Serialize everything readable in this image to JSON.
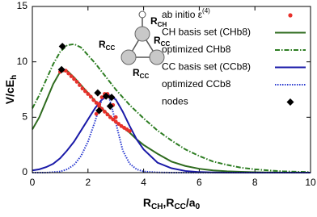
{
  "chart_data": {
    "type": "line",
    "xlabel": [
      {
        "text": "R",
        "sub": "CH"
      },
      {
        "text": ",R",
        "sub": "CC"
      },
      {
        "text": "/a",
        "sub": "0"
      }
    ],
    "ylabel": [
      {
        "text": "V/cE",
        "sub": "h"
      }
    ],
    "xlim": [
      0,
      10
    ],
    "xticks": [
      0,
      2,
      4,
      6,
      8,
      10
    ],
    "ylim": [
      0,
      15
    ],
    "yticks": [
      0,
      5,
      10,
      15
    ],
    "legend": "upper right",
    "inset_labels": [
      {
        "text": "R",
        "sub": "CH"
      },
      {
        "text": "R",
        "sub": "CC"
      },
      {
        "text": "R",
        "sub": "CC"
      },
      {
        "text": "R",
        "sub": "CC"
      }
    ],
    "series": [
      {
        "name": "ab initio ε",
        "name_sup": "(4)",
        "type": "scatter",
        "marker": "circle",
        "color": "#e8302a",
        "x": [
          1.0,
          1.1,
          1.2,
          1.3,
          1.4,
          1.5,
          1.6,
          1.7,
          1.8,
          1.9,
          2.0,
          2.1,
          2.2,
          2.3,
          2.4,
          2.5,
          2.6,
          2.7,
          2.8,
          2.9,
          3.0,
          3.1,
          3.2,
          3.3,
          3.4,
          3.5,
          2.3,
          2.4,
          2.5,
          2.6,
          2.7,
          2.8,
          2.9,
          3.0
        ],
        "values": [
          9.1,
          9.25,
          9.2,
          8.95,
          8.7,
          8.45,
          8.2,
          7.9,
          7.6,
          7.35,
          7.1,
          6.85,
          6.55,
          6.3,
          6.0,
          5.75,
          5.5,
          5.25,
          5.0,
          4.8,
          4.6,
          4.4,
          4.2,
          4.05,
          3.9,
          3.75,
          5.3,
          6.2,
          6.8,
          7.1,
          7.1,
          6.8,
          6.1,
          5.0
        ]
      },
      {
        "name": "CH basis set (CHb8)",
        "type": "line",
        "style": "solid",
        "color": "#2e6b1e",
        "x": [
          0,
          0.25,
          0.5,
          0.75,
          1,
          1.25,
          1.5,
          1.75,
          2,
          2.25,
          2.5,
          2.75,
          3,
          3.25,
          3.5,
          3.75,
          4,
          4.5,
          5,
          5.5,
          6,
          6.5,
          7,
          7.5,
          8,
          8.5,
          9,
          9.5,
          10
        ],
        "values": [
          3.9,
          5.0,
          6.5,
          8.0,
          9.1,
          9.2,
          8.6,
          7.9,
          7.2,
          6.5,
          5.8,
          5.2,
          4.6,
          4.1,
          3.6,
          3.0,
          2.5,
          1.7,
          1.0,
          0.6,
          0.35,
          0.2,
          0.12,
          0.07,
          0.04,
          0.02,
          0.01,
          0.01,
          0
        ]
      },
      {
        "name": "optimized CHb8",
        "type": "line",
        "style": "dashdot",
        "color": "#2d7d22",
        "x": [
          0,
          0.25,
          0.5,
          0.75,
          1,
          1.25,
          1.5,
          1.75,
          2,
          2.25,
          2.5,
          2.75,
          3,
          3.25,
          3.5,
          3.75,
          4,
          4.5,
          5,
          5.5,
          6,
          6.5,
          7,
          7.5,
          8,
          8.5,
          9,
          9.5,
          10
        ],
        "values": [
          5.8,
          7.0,
          8.4,
          9.8,
          10.9,
          11.5,
          11.6,
          11.3,
          10.6,
          9.9,
          9.1,
          8.3,
          7.5,
          6.8,
          6.1,
          5.5,
          4.9,
          3.8,
          2.9,
          2.1,
          1.5,
          1.0,
          0.7,
          0.45,
          0.3,
          0.2,
          0.12,
          0.08,
          0.05
        ]
      },
      {
        "name": "CC basis set (CCb8)",
        "type": "line",
        "style": "solid",
        "color": "#1a1aa8",
        "x": [
          0,
          0.25,
          0.5,
          0.75,
          1,
          1.25,
          1.5,
          1.75,
          2,
          2.25,
          2.5,
          2.75,
          3,
          3.25,
          3.5,
          3.75,
          4,
          4.5,
          5,
          5.5,
          6,
          6.5,
          7,
          7.5,
          8,
          8.5,
          9,
          9.5,
          10
        ],
        "values": [
          0.2,
          0.3,
          0.5,
          0.8,
          1.3,
          2.0,
          2.8,
          3.8,
          4.8,
          5.8,
          6.6,
          7.0,
          6.6,
          5.5,
          4.2,
          3.0,
          2.1,
          0.9,
          0.4,
          0.15,
          0.05,
          0.02,
          0,
          0,
          0,
          0,
          0,
          0,
          0
        ]
      },
      {
        "name": "optimized CCb8",
        "type": "line",
        "style": "dotted",
        "color": "#2b3bd0",
        "x": [
          0,
          0.25,
          0.5,
          0.75,
          1,
          1.25,
          1.5,
          1.75,
          2,
          2.25,
          2.5,
          2.75,
          3,
          3.25,
          3.5,
          3.75,
          4,
          4.5,
          5,
          5.5,
          6,
          6.5,
          7,
          7.5,
          8,
          8.5,
          9,
          9.5,
          10
        ],
        "values": [
          0,
          0,
          0,
          0.05,
          0.1,
          0.3,
          0.7,
          1.5,
          2.8,
          4.6,
          6.6,
          6.9,
          4.5,
          2.0,
          0.8,
          0.3,
          0.1,
          0.02,
          0,
          0,
          0,
          0,
          0,
          0,
          0,
          0,
          0,
          0,
          0
        ]
      },
      {
        "name": "nodes",
        "type": "scatter",
        "marker": "diamond",
        "color": "#000000",
        "x": [
          1.08,
          1.05,
          2.35,
          2.4,
          2.65,
          2.85,
          2.8
        ],
        "values": [
          11.4,
          9.3,
          7.2,
          5.6,
          6.9,
          6.8,
          6.0
        ]
      }
    ]
  }
}
